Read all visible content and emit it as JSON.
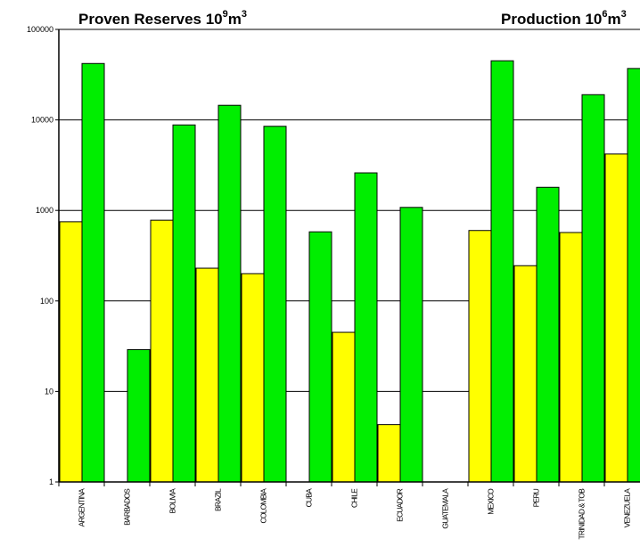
{
  "chart_data": {
    "type": "bar",
    "title_left": {
      "text": "Proven Reserves 10",
      "sup1": "9",
      "mid": "m",
      "sup2": "3"
    },
    "title_right": {
      "text": "Production 10",
      "sup1": "6",
      "mid": "m",
      "sup2": "3"
    },
    "yscale": "log",
    "ylim": [
      1,
      100000
    ],
    "yticks": [
      "1",
      "10",
      "100",
      "1000",
      "10000",
      "100000"
    ],
    "grid": true,
    "categories": [
      "ARGENTINA",
      "BARBADOS",
      "BOLIVIA",
      "BRAZIL",
      "COLOMBIA",
      "CUBA",
      "CHILE",
      "ECUADOR",
      "GUATEMALA",
      "MEXICO",
      "PERU",
      "TRINIDAD & TOB",
      "VENEZUELA"
    ],
    "series": [
      {
        "color": "#ffff00",
        "values": [
          750,
          null,
          780,
          230,
          200,
          null,
          45,
          4.3,
          null,
          600,
          245,
          570,
          4200
        ]
      },
      {
        "color": "#00ee00",
        "values": [
          42000,
          29,
          8800,
          14500,
          8500,
          580,
          2600,
          1080,
          null,
          45000,
          1800,
          19000,
          37000
        ]
      }
    ]
  }
}
